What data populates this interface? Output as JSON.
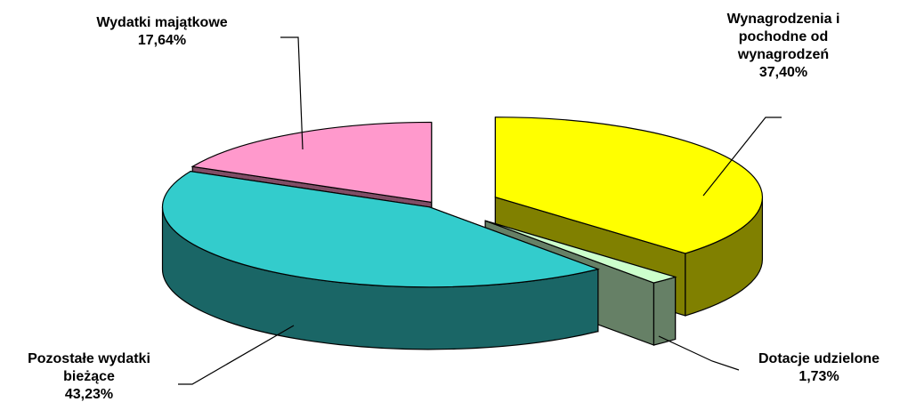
{
  "chart_data": {
    "type": "pie",
    "style": "3d-exploded",
    "slices": [
      {
        "label": "Wynagrodzenia i pochodne od wynagrodzeń",
        "label_lines": [
          "Wynagrodzenia i",
          "pochodne od",
          "wynagrodzeń"
        ],
        "value": 37.4,
        "value_label": "37,40%",
        "color": "#FFFF00",
        "side_color": "#808000"
      },
      {
        "label": "Dotacje udzielone",
        "label_lines": [
          "Dotacje udzielone"
        ],
        "value": 1.73,
        "value_label": "1,73%",
        "color": "#CCFFCC",
        "side_color": "#668066"
      },
      {
        "label": "Pozostałe wydatki bieżące",
        "label_lines": [
          "Pozostałe wydatki",
          "bieżące"
        ],
        "value": 43.23,
        "value_label": "43,23%",
        "color": "#33CCCC",
        "side_color": "#1A6666"
      },
      {
        "label": "Wydatki majątkowe",
        "label_lines": [
          "Wydatki majątkowe"
        ],
        "value": 17.64,
        "value_label": "17,64%",
        "color": "#FF99CC",
        "side_color": "#804D66"
      }
    ]
  }
}
